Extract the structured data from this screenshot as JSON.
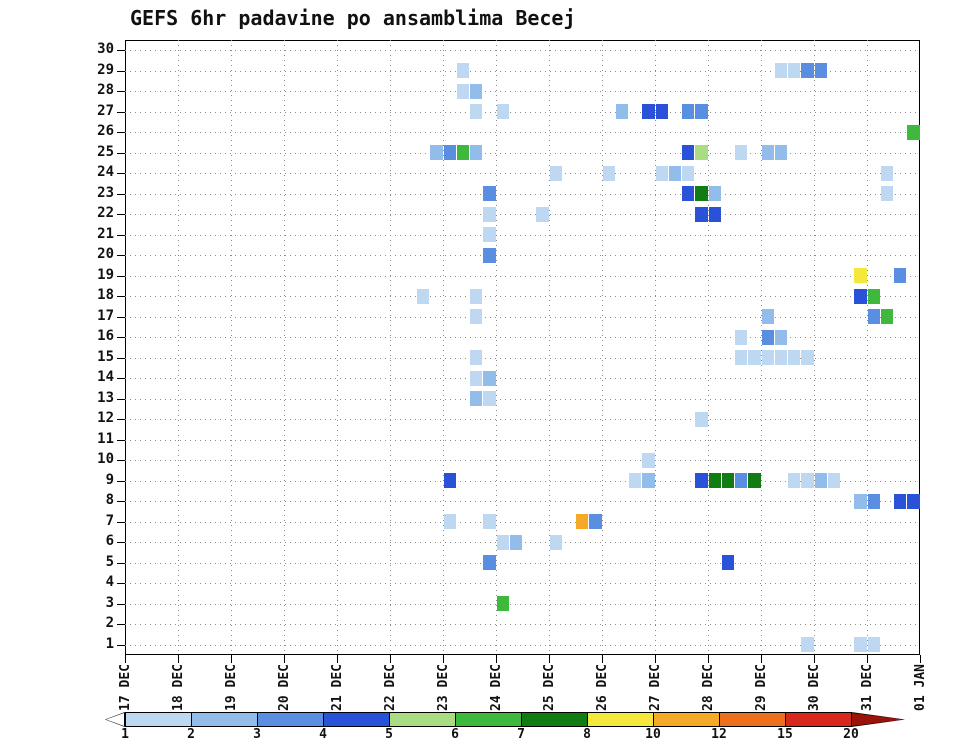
{
  "title": "GEFS 6hr padavine po ansamblima Becej",
  "chart_data": {
    "type": "heatmap",
    "title": "GEFS 6hr padavine po ansamblima Becej",
    "x": {
      "day_labels": [
        "17 DEC",
        "18 DEC",
        "19 DEC",
        "20 DEC",
        "21 DEC",
        "22 DEC",
        "23 DEC",
        "24 DEC",
        "25 DEC",
        "26 DEC",
        "27 DEC",
        "28 DEC",
        "29 DEC",
        "30 DEC",
        "31 DEC",
        "01 JAN"
      ],
      "slots_per_day": 4
    },
    "y": {
      "min": 1,
      "max": 30,
      "step": 1
    },
    "grid": true,
    "legend_position": "bottom",
    "scale": {
      "boundary_labels": [
        "1",
        "2",
        "3",
        "4",
        "5",
        "6",
        "7",
        "8",
        "10",
        "12",
        "15",
        "20"
      ],
      "segment_colors": [
        "#BFD8F2",
        "#92BCEA",
        "#5A8EE0",
        "#2A52D8",
        "#AADC82",
        "#3FB83E",
        "#117C11",
        "#F5E83C",
        "#F5A929",
        "#EE6F1E",
        "#D8281E"
      ],
      "under_color": "#FFFFFF",
      "over_color": "#9B1209"
    },
    "palette": {
      "1": "#BFD8F2",
      "2": "#92BCEA",
      "3": "#5A8EE0",
      "4": "#2A52D8",
      "5": "#AADC82",
      "6": "#3FB83E",
      "7": "#117C11",
      "8": "#F5E83C",
      "10": "#F5A929",
      "12": "#EE6F1E",
      "15": "#D8281E",
      "20": "#9B1209"
    },
    "cells": [
      [
        29,
        25,
        1
      ],
      [
        29,
        49,
        1
      ],
      [
        29,
        50,
        1
      ],
      [
        29,
        51,
        3
      ],
      [
        29,
        52,
        3
      ],
      [
        28,
        25,
        1
      ],
      [
        28,
        26,
        2
      ],
      [
        27,
        26,
        1
      ],
      [
        27,
        28,
        1
      ],
      [
        27,
        37,
        2
      ],
      [
        27,
        39,
        4
      ],
      [
        27,
        40,
        4
      ],
      [
        27,
        42,
        3
      ],
      [
        27,
        43,
        3
      ],
      [
        26,
        59,
        6
      ],
      [
        25,
        23,
        2
      ],
      [
        25,
        24,
        3
      ],
      [
        25,
        25,
        6
      ],
      [
        25,
        26,
        2
      ],
      [
        25,
        42,
        4
      ],
      [
        25,
        43,
        5
      ],
      [
        25,
        46,
        1
      ],
      [
        25,
        48,
        2
      ],
      [
        25,
        49,
        2
      ],
      [
        24,
        32,
        1
      ],
      [
        24,
        36,
        1
      ],
      [
        24,
        40,
        1
      ],
      [
        24,
        41,
        2
      ],
      [
        24,
        42,
        1
      ],
      [
        24,
        57,
        1
      ],
      [
        23,
        27,
        3
      ],
      [
        23,
        42,
        4
      ],
      [
        23,
        43,
        7
      ],
      [
        23,
        44,
        2
      ],
      [
        23,
        57,
        1
      ],
      [
        22,
        27,
        1
      ],
      [
        22,
        31,
        1
      ],
      [
        22,
        43,
        4
      ],
      [
        22,
        44,
        4
      ],
      [
        21,
        27,
        1
      ],
      [
        20,
        27,
        3
      ],
      [
        19,
        55,
        8
      ],
      [
        19,
        58,
        3
      ],
      [
        18,
        22,
        1
      ],
      [
        18,
        26,
        1
      ],
      [
        18,
        55,
        4
      ],
      [
        18,
        56,
        6
      ],
      [
        17,
        26,
        1
      ],
      [
        17,
        48,
        2
      ],
      [
        17,
        56,
        3
      ],
      [
        17,
        57,
        6
      ],
      [
        16,
        46,
        1
      ],
      [
        16,
        48,
        3
      ],
      [
        16,
        49,
        2
      ],
      [
        15,
        26,
        1
      ],
      [
        15,
        46,
        1
      ],
      [
        15,
        47,
        1
      ],
      [
        15,
        48,
        1
      ],
      [
        15,
        49,
        1
      ],
      [
        15,
        50,
        1
      ],
      [
        15,
        51,
        1
      ],
      [
        14,
        26,
        1
      ],
      [
        14,
        27,
        2
      ],
      [
        13,
        26,
        2
      ],
      [
        13,
        27,
        1
      ],
      [
        12,
        43,
        1
      ],
      [
        10,
        39,
        1
      ],
      [
        9,
        24,
        4
      ],
      [
        9,
        38,
        1
      ],
      [
        9,
        39,
        2
      ],
      [
        9,
        43,
        4
      ],
      [
        9,
        44,
        7
      ],
      [
        9,
        45,
        7
      ],
      [
        9,
        46,
        3
      ],
      [
        9,
        47,
        7
      ],
      [
        9,
        50,
        1
      ],
      [
        9,
        51,
        1
      ],
      [
        9,
        52,
        2
      ],
      [
        9,
        53,
        1
      ],
      [
        8,
        55,
        2
      ],
      [
        8,
        56,
        3
      ],
      [
        8,
        58,
        4
      ],
      [
        8,
        59,
        4
      ],
      [
        7,
        24,
        1
      ],
      [
        7,
        27,
        1
      ],
      [
        7,
        34,
        10
      ],
      [
        7,
        35,
        3
      ],
      [
        6,
        28,
        1
      ],
      [
        6,
        29,
        2
      ],
      [
        6,
        32,
        1
      ],
      [
        5,
        27,
        3
      ],
      [
        5,
        45,
        4
      ],
      [
        3,
        28,
        6
      ],
      [
        1,
        51,
        1
      ],
      [
        1,
        55,
        1
      ],
      [
        1,
        56,
        1
      ]
    ]
  }
}
